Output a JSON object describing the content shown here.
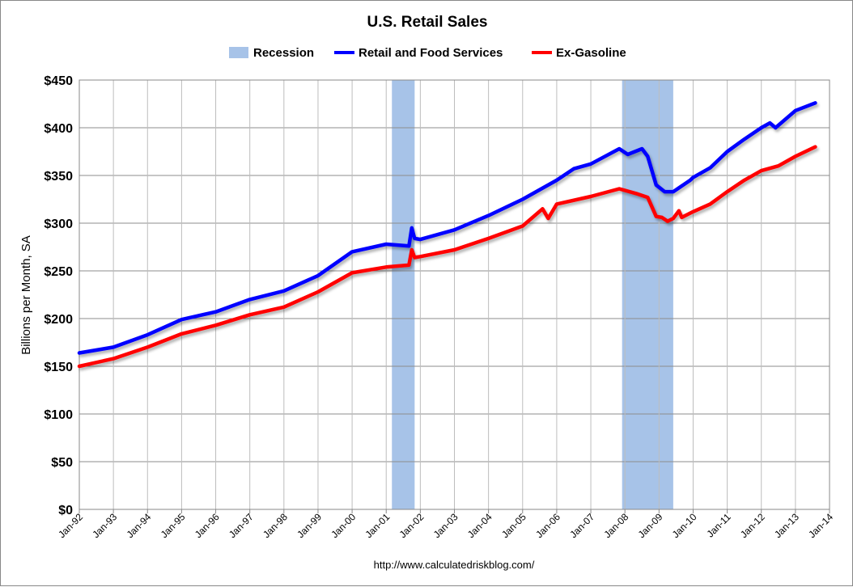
{
  "chart_data": {
    "type": "line",
    "title": "U.S. Retail Sales",
    "ylabel": "Billions per Month, SA",
    "xlabel": "",
    "source": "http://www.calculatedriskblog.com/",
    "ylim": [
      0,
      450
    ],
    "xlim": [
      "1992-01",
      "2014-01"
    ],
    "y_ticks": [
      "$0",
      "$50",
      "$100",
      "$150",
      "$200",
      "$250",
      "$300",
      "$350",
      "$400",
      "$450"
    ],
    "x_ticks": [
      "Jan-92",
      "Jan-93",
      "Jan-94",
      "Jan-95",
      "Jan-96",
      "Jan-97",
      "Jan-98",
      "Jan-99",
      "Jan-00",
      "Jan-01",
      "Jan-02",
      "Jan-03",
      "Jan-04",
      "Jan-05",
      "Jan-06",
      "Jan-07",
      "Jan-08",
      "Jan-09",
      "Jan-10",
      "Jan-11",
      "Jan-12",
      "Jan-13",
      "Jan-14"
    ],
    "grid": true,
    "legend_position": "top",
    "recessions": {
      "name": "Recession",
      "color": "#A7C3E8",
      "periods": [
        [
          "2001-03",
          "2001-11"
        ],
        [
          "2007-12",
          "2009-06"
        ]
      ]
    },
    "series": [
      {
        "name": "Retail and Food Services",
        "color": "#0000FF",
        "x": [
          "1992-01",
          "1993-01",
          "1994-01",
          "1995-01",
          "1996-01",
          "1997-01",
          "1998-01",
          "1999-01",
          "2000-01",
          "2001-01",
          "2001-09",
          "2001-10",
          "2001-11",
          "2002-01",
          "2003-01",
          "2004-01",
          "2005-01",
          "2006-01",
          "2006-07",
          "2007-01",
          "2007-11",
          "2008-02",
          "2008-07",
          "2008-09",
          "2008-12",
          "2009-03",
          "2009-06",
          "2009-12",
          "2010-01",
          "2010-07",
          "2011-01",
          "2011-07",
          "2012-01",
          "2012-04",
          "2012-06",
          "2013-01",
          "2013-08"
        ],
        "y": [
          164,
          170,
          183,
          199,
          207,
          220,
          229,
          245,
          270,
          278,
          276,
          295,
          284,
          283,
          293,
          308,
          325,
          345,
          357,
          362,
          378,
          372,
          378,
          370,
          340,
          333,
          333,
          345,
          348,
          358,
          375,
          388,
          400,
          405,
          400,
          418,
          426
        ]
      },
      {
        "name": "Ex-Gasoline",
        "color": "#FF0000",
        "x": [
          "1992-01",
          "1993-01",
          "1994-01",
          "1995-01",
          "1996-01",
          "1997-01",
          "1998-01",
          "1999-01",
          "2000-01",
          "2001-01",
          "2001-09",
          "2001-10",
          "2001-11",
          "2002-01",
          "2003-01",
          "2004-01",
          "2005-01",
          "2005-08",
          "2005-10",
          "2006-01",
          "2007-01",
          "2007-11",
          "2008-05",
          "2008-09",
          "2008-12",
          "2009-02",
          "2009-04",
          "2009-06",
          "2009-08",
          "2009-09",
          "2010-01",
          "2010-07",
          "2011-01",
          "2011-07",
          "2012-01",
          "2012-07",
          "2013-01",
          "2013-08"
        ],
        "y": [
          150,
          158,
          170,
          184,
          193,
          204,
          212,
          228,
          248,
          254,
          256,
          272,
          264,
          265,
          272,
          284,
          297,
          315,
          305,
          320,
          328,
          336,
          331,
          327,
          307,
          306,
          302,
          305,
          313,
          306,
          312,
          320,
          333,
          345,
          355,
          360,
          370,
          380
        ]
      }
    ]
  }
}
